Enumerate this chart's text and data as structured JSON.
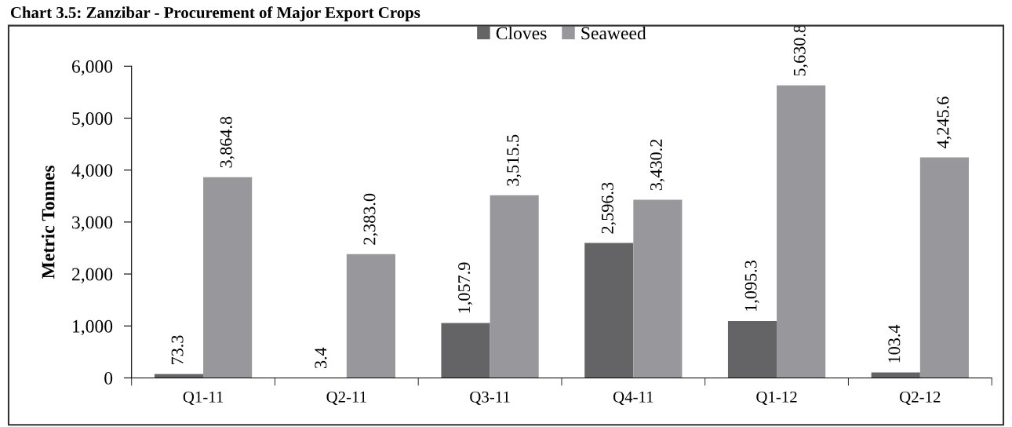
{
  "chart_data": {
    "type": "bar",
    "title": "Chart 3.5: Zanzibar - Procurement of Major Export Crops",
    "ylabel": "Metric Tonnes",
    "categories": [
      "Q1-11",
      "Q2-11",
      "Q3-11",
      "Q4-11",
      "Q1-12",
      "Q2-12"
    ],
    "series": [
      {
        "name": "Cloves",
        "color": "#646466",
        "values": [
          73.3,
          3.4,
          1057.9,
          2596.3,
          1095.3,
          103.4
        ],
        "value_labels": [
          "73.3",
          "3.4",
          "1,057.9",
          "2,596.3",
          "1,095.3",
          "103.4"
        ]
      },
      {
        "name": "Seaweed",
        "color": "#98989c",
        "values": [
          3864.8,
          2383.0,
          3515.5,
          3430.2,
          5630.8,
          4245.6
        ],
        "value_labels": [
          "3,864.8",
          "2,383.0",
          "3,515.5",
          "3,430.2",
          "5,630.8",
          "4,245.6"
        ]
      }
    ],
    "ylim": [
      0,
      6000
    ],
    "yticks": [
      {
        "value": 0,
        "label": "0"
      },
      {
        "value": 1000,
        "label": "1,000"
      },
      {
        "value": 2000,
        "label": "2,000"
      },
      {
        "value": 3000,
        "label": "3,000"
      },
      {
        "value": 4000,
        "label": "4,000"
      },
      {
        "value": 5000,
        "label": "5,000"
      },
      {
        "value": 6000,
        "label": "6,000"
      }
    ],
    "grid": false,
    "legend": "top"
  }
}
